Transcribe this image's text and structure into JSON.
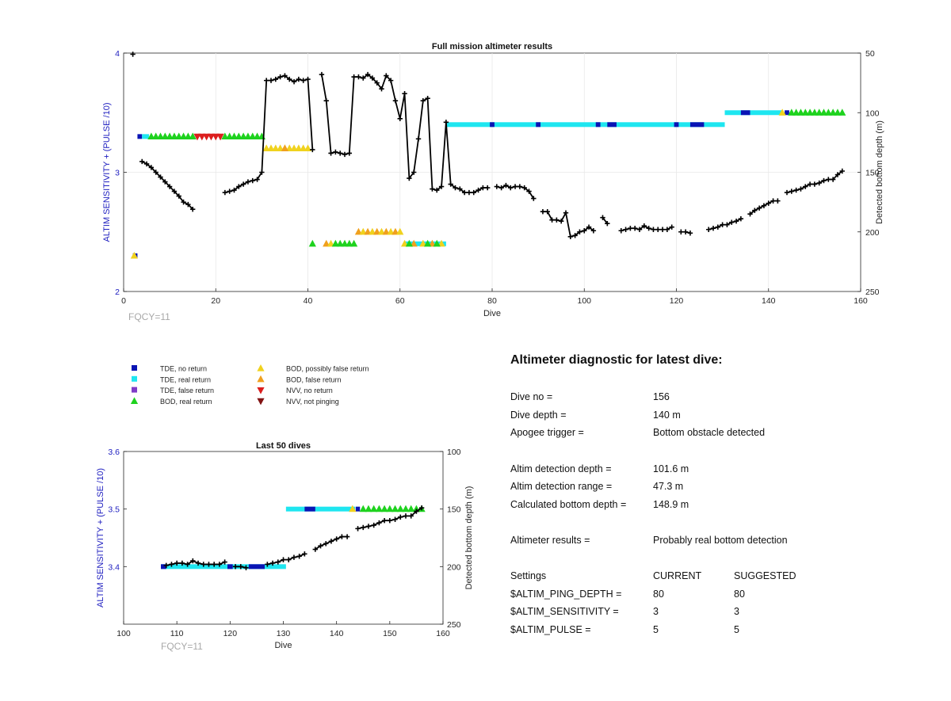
{
  "colors": {
    "tde_no_return": "#0a14b4",
    "tde_real_return": "#1ee6f0",
    "tde_false_return": "#7f3cc8",
    "bod_real_return": "#1ed21e",
    "bod_possibly_false": "#f0d21e",
    "bod_false_return": "#f0a01e",
    "nvv_no_return": "#dc1e1e",
    "nvv_not_pinging": "#821414",
    "depth_line": "#000000",
    "axis_left": "#2020c0"
  },
  "chart_data": [
    {
      "type": "line",
      "title": "Full mission altimeter results",
      "xlabel": "Dive",
      "ylabel": "ALTIM SENSITIVITY + (PULSE /10)",
      "ylabel_right": "Detected bottom depth (m)",
      "xlim": [
        0,
        160
      ],
      "ylim": [
        2,
        4
      ],
      "ylim_right": [
        250,
        50
      ],
      "x_ticks": [
        "0",
        "20",
        "40",
        "60",
        "80",
        "100",
        "120",
        "140",
        "160"
      ],
      "y_ticks": [
        "2",
        "3",
        "4"
      ],
      "y_right_ticks": [
        "50",
        "100",
        "150",
        "200",
        "250"
      ],
      "footnote": "FQCY=11",
      "depth_series": [
        {
          "x": 2,
          "y": 51
        },
        {
          "x": 4,
          "y": 141
        },
        {
          "x": 5,
          "y": 143
        },
        {
          "x": 6,
          "y": 146
        },
        {
          "x": 7,
          "y": 150
        },
        {
          "x": 8,
          "y": 154
        },
        {
          "x": 9,
          "y": 158
        },
        {
          "x": 10,
          "y": 162
        },
        {
          "x": 11,
          "y": 166
        },
        {
          "x": 12,
          "y": 170
        },
        {
          "x": 13,
          "y": 175
        },
        {
          "x": 14,
          "y": 177
        },
        {
          "x": 15,
          "y": 181
        },
        {
          "x": 22,
          "y": 167
        },
        {
          "x": 23,
          "y": 166
        },
        {
          "x": 24,
          "y": 165
        },
        {
          "x": 25,
          "y": 162
        },
        {
          "x": 26,
          "y": 160
        },
        {
          "x": 27,
          "y": 158
        },
        {
          "x": 28,
          "y": 157
        },
        {
          "x": 29,
          "y": 156
        },
        {
          "x": 30,
          "y": 150
        },
        {
          "x": 31,
          "y": 73
        },
        {
          "x": 32,
          "y": 73
        },
        {
          "x": 33,
          "y": 72
        },
        {
          "x": 34,
          "y": 70
        },
        {
          "x": 35,
          "y": 69
        },
        {
          "x": 36,
          "y": 72
        },
        {
          "x": 37,
          "y": 74
        },
        {
          "x": 38,
          "y": 72
        },
        {
          "x": 39,
          "y": 73
        },
        {
          "x": 40,
          "y": 72
        },
        {
          "x": 41,
          "y": 131
        },
        {
          "x": 43,
          "y": 68
        },
        {
          "x": 44,
          "y": 90
        },
        {
          "x": 45,
          "y": 134
        },
        {
          "x": 46,
          "y": 133
        },
        {
          "x": 47,
          "y": 134
        },
        {
          "x": 48,
          "y": 135
        },
        {
          "x": 49,
          "y": 134
        },
        {
          "x": 50,
          "y": 70
        },
        {
          "x": 51,
          "y": 70
        },
        {
          "x": 52,
          "y": 71
        },
        {
          "x": 53,
          "y": 68
        },
        {
          "x": 54,
          "y": 71
        },
        {
          "x": 55,
          "y": 75
        },
        {
          "x": 56,
          "y": 80
        },
        {
          "x": 57,
          "y": 69
        },
        {
          "x": 58,
          "y": 73
        },
        {
          "x": 59,
          "y": 90
        },
        {
          "x": 60,
          "y": 105
        },
        {
          "x": 61,
          "y": 84
        },
        {
          "x": 62,
          "y": 155
        },
        {
          "x": 63,
          "y": 150
        },
        {
          "x": 64,
          "y": 122
        },
        {
          "x": 65,
          "y": 90
        },
        {
          "x": 66,
          "y": 88
        },
        {
          "x": 67,
          "y": 164
        },
        {
          "x": 68,
          "y": 165
        },
        {
          "x": 69,
          "y": 162
        },
        {
          "x": 70,
          "y": 108
        },
        {
          "x": 71,
          "y": 160
        },
        {
          "x": 72,
          "y": 163
        },
        {
          "x": 73,
          "y": 164
        },
        {
          "x": 74,
          "y": 167
        },
        {
          "x": 75,
          "y": 167
        },
        {
          "x": 76,
          "y": 167
        },
        {
          "x": 77,
          "y": 165
        },
        {
          "x": 78,
          "y": 163
        },
        {
          "x": 79,
          "y": 163
        },
        {
          "x": 81,
          "y": 162
        },
        {
          "x": 82,
          "y": 163
        },
        {
          "x": 83,
          "y": 161
        },
        {
          "x": 84,
          "y": 163
        },
        {
          "x": 85,
          "y": 162
        },
        {
          "x": 86,
          "y": 162
        },
        {
          "x": 87,
          "y": 163
        },
        {
          "x": 88,
          "y": 166
        },
        {
          "x": 89,
          "y": 172
        },
        {
          "x": 91,
          "y": 183
        },
        {
          "x": 92,
          "y": 183
        },
        {
          "x": 93,
          "y": 190
        },
        {
          "x": 94,
          "y": 190
        },
        {
          "x": 95,
          "y": 191
        },
        {
          "x": 96,
          "y": 184
        },
        {
          "x": 97,
          "y": 204
        },
        {
          "x": 98,
          "y": 203
        },
        {
          "x": 99,
          "y": 200
        },
        {
          "x": 100,
          "y": 199
        },
        {
          "x": 101,
          "y": 196
        },
        {
          "x": 102,
          "y": 199
        },
        {
          "x": 104,
          "y": 188
        },
        {
          "x": 105,
          "y": 193
        },
        {
          "x": 108,
          "y": 199
        },
        {
          "x": 109,
          "y": 198
        },
        {
          "x": 110,
          "y": 197
        },
        {
          "x": 111,
          "y": 197
        },
        {
          "x": 112,
          "y": 198
        },
        {
          "x": 113,
          "y": 195
        },
        {
          "x": 114,
          "y": 197
        },
        {
          "x": 115,
          "y": 198
        },
        {
          "x": 116,
          "y": 198
        },
        {
          "x": 117,
          "y": 198
        },
        {
          "x": 118,
          "y": 198
        },
        {
          "x": 119,
          "y": 196
        },
        {
          "x": 121,
          "y": 200
        },
        {
          "x": 122,
          "y": 200
        },
        {
          "x": 123,
          "y": 201
        },
        {
          "x": 127,
          "y": 198
        },
        {
          "x": 128,
          "y": 197
        },
        {
          "x": 129,
          "y": 196
        },
        {
          "x": 130,
          "y": 194
        },
        {
          "x": 131,
          "y": 194
        },
        {
          "x": 132,
          "y": 192
        },
        {
          "x": 133,
          "y": 191
        },
        {
          "x": 134,
          "y": 189
        },
        {
          "x": 136,
          "y": 185
        },
        {
          "x": 137,
          "y": 182
        },
        {
          "x": 138,
          "y": 180
        },
        {
          "x": 139,
          "y": 178
        },
        {
          "x": 140,
          "y": 176
        },
        {
          "x": 141,
          "y": 174
        },
        {
          "x": 142,
          "y": 174
        },
        {
          "x": 144,
          "y": 167
        },
        {
          "x": 145,
          "y": 166
        },
        {
          "x": 146,
          "y": 165
        },
        {
          "x": 147,
          "y": 164
        },
        {
          "x": 148,
          "y": 162
        },
        {
          "x": 149,
          "y": 160
        },
        {
          "x": 150,
          "y": 160
        },
        {
          "x": 151,
          "y": 159
        },
        {
          "x": 152,
          "y": 157
        },
        {
          "x": 153,
          "y": 156
        },
        {
          "x": 154,
          "y": 156
        },
        {
          "x": 155,
          "y": 152
        },
        {
          "x": 156,
          "y": 149
        }
      ]
    },
    {
      "type": "line",
      "title": "Last 50 dives",
      "xlabel": "Dive",
      "ylabel": "ALTIM SENSITIVITY + (PULSE /10)",
      "ylabel_right": "Detected bottom depth (m)",
      "xlim": [
        100,
        160
      ],
      "ylim": [
        3.3,
        3.6
      ],
      "ylim_right": [
        250,
        100
      ],
      "x_ticks": [
        "100",
        "110",
        "120",
        "130",
        "140",
        "150",
        "160"
      ],
      "y_ticks": [
        "3.4",
        "3.5",
        "3.6"
      ],
      "y_right_ticks": [
        "100",
        "150",
        "200",
        "250"
      ],
      "footnote": "FQCY=11"
    }
  ],
  "legend": {
    "left": [
      {
        "label": "TDE, no return",
        "color": "#0a14b4",
        "shape": "square"
      },
      {
        "label": "TDE, real return",
        "color": "#1ee6f0",
        "shape": "square"
      },
      {
        "label": "TDE, false return",
        "color": "#7f3cc8",
        "shape": "square"
      },
      {
        "label": "BOD, real return",
        "color": "#1ed21e",
        "shape": "tri-up"
      }
    ],
    "right": [
      {
        "label": "BOD, possibly false return",
        "color": "#f0d21e",
        "shape": "tri-up"
      },
      {
        "label": "BOD, false return",
        "color": "#f0a01e",
        "shape": "tri-up"
      },
      {
        "label": "NVV, no return",
        "color": "#dc1e1e",
        "shape": "tri-down"
      },
      {
        "label": "NVV, not pinging",
        "color": "#821414",
        "shape": "tri-down"
      }
    ]
  },
  "diagnostic": {
    "title": "Altimeter diagnostic for latest dive:",
    "dive_no_label": "Dive no =",
    "dive_no": "156",
    "dive_depth_label": "Dive depth =",
    "dive_depth": "140 m",
    "apogee_label": "Apogee trigger =",
    "apogee": "Bottom obstacle detected",
    "detect_depth_label": "Altim detection depth =",
    "detect_depth": "101.6 m",
    "detect_range_label": "Altim detection range =",
    "detect_range": "47.3 m",
    "bottom_depth_label": "Calculated bottom depth =",
    "bottom_depth": "148.9 m",
    "results_label": "Altimeter results =",
    "results": "Probably real bottom detection",
    "settings_label": "Settings",
    "current_label": "CURRENT",
    "suggested_label": "SUGGESTED",
    "settings": [
      {
        "name": "$ALTIM_PING_DEPTH =",
        "current": "80",
        "suggested": "80"
      },
      {
        "name": "$ALTIM_SENSITIVITY =",
        "current": "3",
        "suggested": "3"
      },
      {
        "name": "$ALTIM_PULSE =",
        "current": "5",
        "suggested": "5"
      }
    ]
  }
}
